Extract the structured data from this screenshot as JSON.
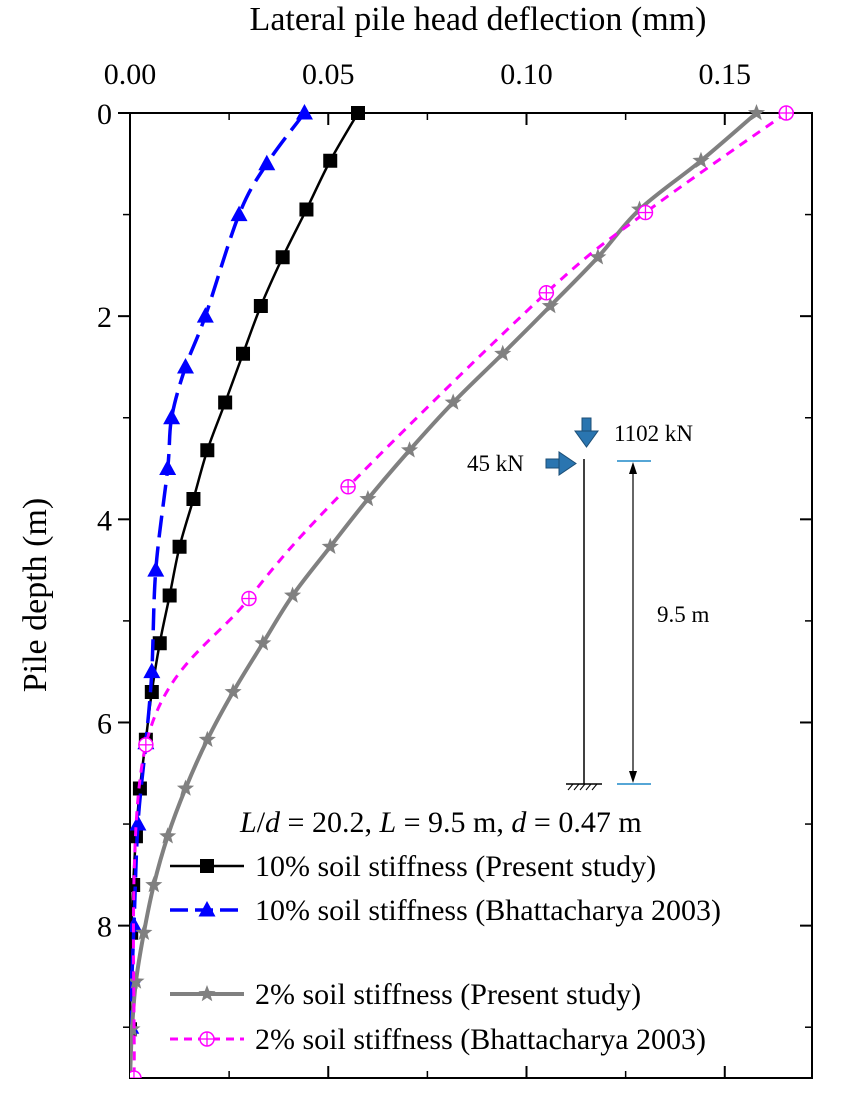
{
  "chart_data": {
    "type": "line",
    "xlabel": "Lateral pile head deflection (mm)",
    "ylabel": "Pile depth (m)",
    "xlim": [
      0,
      0.172
    ],
    "ylim": [
      0,
      9.5
    ],
    "x_axis_position": "top",
    "y_axis_inverted": true,
    "x_ticks": [
      "0.00",
      "0.05",
      "0.10",
      "0.15"
    ],
    "x_tick_values": [
      0,
      0.05,
      0.1,
      0.15
    ],
    "y_ticks": [
      "0",
      "2",
      "4",
      "6",
      "8"
    ],
    "y_tick_values": [
      0,
      2,
      4,
      6,
      8
    ],
    "grid": false,
    "legend_position": "bottom-right",
    "series": [
      {
        "name": "10% soil stiffness (Present study)",
        "color": "#000000",
        "dash": "solid",
        "marker": "square",
        "points": [
          [
            0.0575,
            0
          ],
          [
            0.0505,
            0.47
          ],
          [
            0.0445,
            0.95
          ],
          [
            0.0385,
            1.42
          ],
          [
            0.033,
            1.9
          ],
          [
            0.0285,
            2.37
          ],
          [
            0.024,
            2.85
          ],
          [
            0.0195,
            3.32
          ],
          [
            0.016,
            3.8
          ],
          [
            0.0125,
            4.27
          ],
          [
            0.01,
            4.75
          ],
          [
            0.0075,
            5.22
          ],
          [
            0.0055,
            5.7
          ],
          [
            0.004,
            6.17
          ],
          [
            0.0025,
            6.65
          ],
          [
            0.0015,
            7.12
          ],
          [
            0.0008,
            7.6
          ],
          [
            0.0003,
            8.07
          ],
          [
            0.0001,
            8.55
          ],
          [
            0.0,
            9.02
          ],
          [
            0.0,
            9.5
          ]
        ]
      },
      {
        "name": "10% soil stiffness (Bhattacharya 2003)",
        "color": "#0000FF",
        "dash": "long-dash",
        "marker": "triangle",
        "points": [
          [
            0.044,
            0
          ],
          [
            0.0345,
            0.5
          ],
          [
            0.0275,
            1.0
          ],
          [
            0.019,
            2.0
          ],
          [
            0.014,
            2.5
          ],
          [
            0.0105,
            3.0
          ],
          [
            0.0095,
            3.5
          ],
          [
            0.0065,
            4.5
          ],
          [
            0.0055,
            5.5
          ],
          [
            0.004,
            6.2
          ],
          [
            0.002,
            7.0
          ],
          [
            0.001,
            8.0
          ],
          [
            0.0005,
            8.5
          ],
          [
            0.0002,
            9.0
          ],
          [
            0.0,
            9.5
          ]
        ]
      },
      {
        "name": "2% soil stiffness (Present study)",
        "color": "#808080",
        "dash": "solid",
        "marker": "star",
        "points": [
          [
            0.158,
            0
          ],
          [
            0.144,
            0.47
          ],
          [
            0.1285,
            0.95
          ],
          [
            0.118,
            1.42
          ],
          [
            0.106,
            1.9
          ],
          [
            0.094,
            2.37
          ],
          [
            0.0815,
            2.85
          ],
          [
            0.0705,
            3.32
          ],
          [
            0.06,
            3.8
          ],
          [
            0.0505,
            4.27
          ],
          [
            0.041,
            4.75
          ],
          [
            0.0335,
            5.22
          ],
          [
            0.026,
            5.7
          ],
          [
            0.0195,
            6.17
          ],
          [
            0.014,
            6.65
          ],
          [
            0.0095,
            7.12
          ],
          [
            0.006,
            7.6
          ],
          [
            0.0035,
            8.07
          ],
          [
            0.0015,
            8.55
          ],
          [
            0.0005,
            9.02
          ],
          [
            0.0,
            9.5
          ]
        ]
      },
      {
        "name": "2% soil stiffness (Bhattacharya 2003)",
        "color": "#FF00FF",
        "dash": "short-dash",
        "marker": "circle-plus",
        "points": [
          [
            0.1655,
            0
          ],
          [
            0.13,
            0.98
          ],
          [
            0.105,
            1.77
          ],
          [
            0.055,
            3.68
          ],
          [
            0.03,
            4.78
          ],
          [
            0.004,
            6.22
          ],
          [
            0.001,
            9.5
          ]
        ]
      }
    ],
    "annotations": {
      "params": "L/d = 20.2, L = 9.5 m, d = 0.47 m",
      "vertical_load": "1102 kN",
      "lateral_load": "45 kN",
      "pile_length": "9.5 m"
    }
  }
}
